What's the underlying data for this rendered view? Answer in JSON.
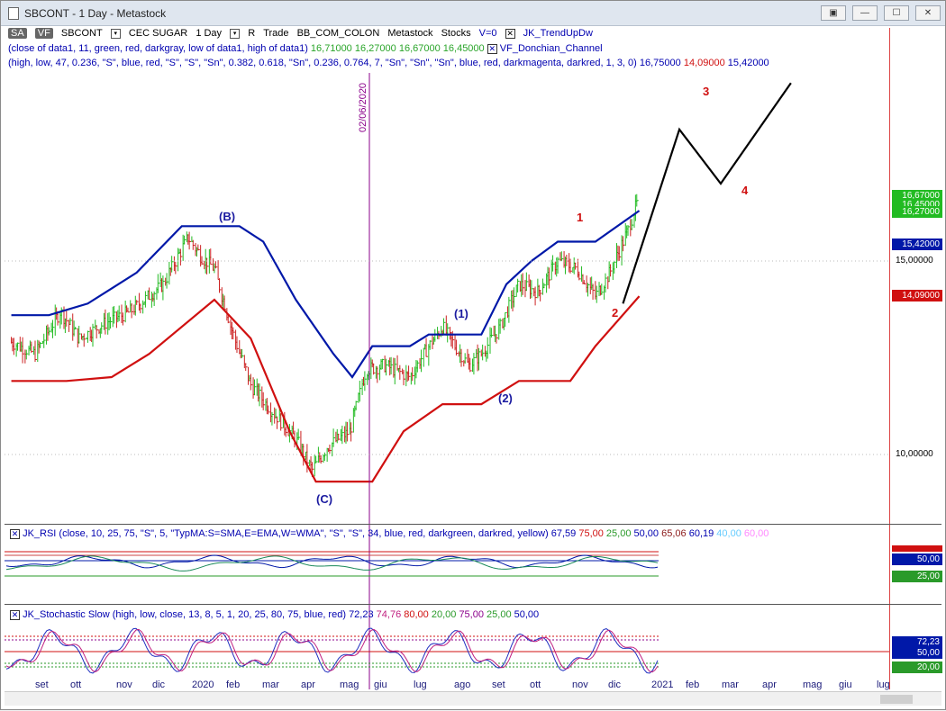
{
  "window": {
    "title": "SBCONT - 1 Day - Metastock",
    "buttons": [
      "▣",
      "—",
      "☐",
      "✕"
    ]
  },
  "toolbar": {
    "sa": "SA",
    "vf": "VF",
    "symbol": "SBCONT",
    "name": "CEC SUGAR",
    "period": "1 Day",
    "r_label": "R",
    "trade": "Trade",
    "datafeed": "BB_COM_COLON",
    "software": "Metastock",
    "category": "Stocks",
    "volume": "V=0",
    "indicator": "JK_TrendUpDw",
    "check": "✕"
  },
  "legend": {
    "line1_params": "(close of data1, 11, green, red, darkgray, low of data1, high of data1)",
    "line1_values": [
      "16,71000",
      "16,27000",
      "16,67000",
      "16,45000"
    ],
    "line1_name": "VF_Donchian_Channel",
    "line2_params": "(high, low, 47, 0.236, \"S\", blue, red, \"S\", \"S\", \"Sn\", 0.382, 0.618, \"Sn\", 0.236, 0.764, 7, \"Sn\", \"Sn\", \"Sn\", blue, red, darkmagenta, darkred, 1, 3, 0)",
    "line2_values": [
      "16,75000",
      "14,09000",
      "15,42000"
    ]
  },
  "price_axis": {
    "labels": [
      "15,00000",
      "10,00000"
    ],
    "tags": [
      "16,67000",
      "16,45000",
      "16,27000",
      "15,42000",
      "14,09000"
    ]
  },
  "vline_date": "02/06/2020",
  "wave_labels": {
    "B": "(B)",
    "C": "(C)",
    "w1": "(1)",
    "w2": "(2)",
    "r1": "1",
    "r2": "2",
    "r3": "3",
    "r4": "4"
  },
  "rsi": {
    "check": "✕",
    "header": "JK_RSI   (close, 10, 25, 75, \"S\", 5, \"TypMA:S=SMA,E=EMA,W=WMA\", \"S\", \"S\", 34, blue, red, darkgreen, darkred, yellow)",
    "values": [
      "67,59",
      "75,00",
      "25,00",
      "50,00",
      "65,06",
      "60,19",
      "40,00",
      "60,00"
    ],
    "tags": [
      "50,00",
      "25,00"
    ]
  },
  "stoch": {
    "check": "✕",
    "header": "JK_Stochastic Slow    (high, low, close, 13, 8, 5, 1, 20, 25, 80, 75, blue, red)",
    "values": [
      "72,23",
      "74,76",
      "80,00",
      "20,00",
      "75,00",
      "25,00",
      "50,00"
    ],
    "tags": [
      "72,23",
      "50,00",
      "20,00"
    ]
  },
  "time_axis": {
    "months": [
      "set",
      "ott",
      "nov",
      "dic",
      "2020",
      "feb",
      "mar",
      "apr",
      "mag",
      "giu",
      "lug",
      "ago",
      "set",
      "ott",
      "nov",
      "dic",
      "2021",
      "feb",
      "mar",
      "apr",
      "mag",
      "giu",
      "lug"
    ]
  },
  "colors": {
    "up_bar": "#22bb22",
    "down_bar": "#cc2222",
    "upper_channel": "#0018a8",
    "lower_channel": "#d01010",
    "vline": "#8b008b",
    "projection": "#000000"
  },
  "chart_data": {
    "type": "line",
    "title": "SBCONT - 1 Day",
    "y_unit": "price",
    "ylim": [
      7.5,
      19.5
    ],
    "x_range": [
      "2019-09",
      "2021-07"
    ],
    "series": [
      {
        "name": "close",
        "points": [
          [
            "2019-09-01",
            12.9
          ],
          [
            "2019-09-20",
            12.6
          ],
          [
            "2019-10-01",
            13.2
          ],
          [
            "2019-10-10",
            13.7
          ],
          [
            "2019-10-25",
            13.0
          ],
          [
            "2019-11-15",
            13.4
          ],
          [
            "2019-12-05",
            13.7
          ],
          [
            "2019-12-31",
            14.4
          ],
          [
            "2020-01-20",
            15.6
          ],
          [
            "2020-01-31",
            15.1
          ],
          [
            "2020-02-10",
            14.8
          ],
          [
            "2020-02-25",
            13.1
          ],
          [
            "2020-03-10",
            11.8
          ],
          [
            "2020-03-25",
            11.2
          ],
          [
            "2020-04-15",
            10.4
          ],
          [
            "2020-04-28",
            9.6
          ],
          [
            "2020-05-10",
            10.2
          ],
          [
            "2020-05-28",
            10.6
          ],
          [
            "2020-06-10",
            12.2
          ],
          [
            "2020-06-25",
            12.3
          ],
          [
            "2020-07-15",
            12.0
          ],
          [
            "2020-07-28",
            12.7
          ],
          [
            "2020-08-10",
            13.3
          ],
          [
            "2020-08-20",
            12.8
          ],
          [
            "2020-08-31",
            12.3
          ],
          [
            "2020-09-10",
            12.6
          ],
          [
            "2020-09-25",
            13.3
          ],
          [
            "2020-10-10",
            14.4
          ],
          [
            "2020-10-25",
            14.2
          ],
          [
            "2020-11-10",
            15.0
          ],
          [
            "2020-11-25",
            14.8
          ],
          [
            "2020-12-10",
            14.1
          ],
          [
            "2020-12-20",
            14.6
          ],
          [
            "2021-01-05",
            15.8
          ],
          [
            "2021-01-14",
            16.67
          ]
        ]
      },
      {
        "name": "channel high",
        "points": [
          [
            "2019-09-01",
            13.6
          ],
          [
            "2019-10-01",
            13.6
          ],
          [
            "2019-11-01",
            13.9
          ],
          [
            "2019-12-10",
            14.7
          ],
          [
            "2020-01-15",
            15.9
          ],
          [
            "2020-03-01",
            15.9
          ],
          [
            "2020-03-20",
            15.5
          ],
          [
            "2020-04-15",
            14.0
          ],
          [
            "2020-05-15",
            12.6
          ],
          [
            "2020-05-30",
            12.0
          ],
          [
            "2020-06-15",
            12.8
          ],
          [
            "2020-07-15",
            12.8
          ],
          [
            "2020-07-30",
            13.1
          ],
          [
            "2020-09-10",
            13.1
          ],
          [
            "2020-09-30",
            14.4
          ],
          [
            "2020-10-20",
            15.0
          ],
          [
            "2020-11-10",
            15.5
          ],
          [
            "2020-12-10",
            15.5
          ],
          [
            "2021-01-14",
            16.3
          ]
        ]
      },
      {
        "name": "channel low",
        "points": [
          [
            "2019-09-01",
            11.9
          ],
          [
            "2019-10-15",
            11.9
          ],
          [
            "2019-11-20",
            12.0
          ],
          [
            "2019-12-20",
            12.6
          ],
          [
            "2020-02-10",
            14.0
          ],
          [
            "2020-03-10",
            13.0
          ],
          [
            "2020-04-10",
            10.6
          ],
          [
            "2020-05-01",
            9.3
          ],
          [
            "2020-06-15",
            9.3
          ],
          [
            "2020-07-10",
            10.6
          ],
          [
            "2020-08-10",
            11.3
          ],
          [
            "2020-09-10",
            11.3
          ],
          [
            "2020-10-10",
            11.9
          ],
          [
            "2020-11-20",
            11.9
          ],
          [
            "2020-12-10",
            12.8
          ],
          [
            "2021-01-14",
            14.09
          ]
        ]
      },
      {
        "name": "wave projection",
        "points": [
          [
            "2021-01-01",
            13.9
          ],
          [
            "2021-02-15",
            18.4
          ],
          [
            "2021-03-20",
            17.0
          ],
          [
            "2021-05-15",
            19.6
          ]
        ]
      }
    ]
  }
}
